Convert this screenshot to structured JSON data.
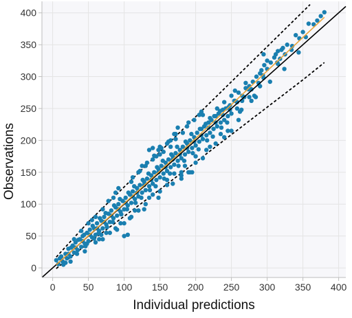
{
  "chart_data": {
    "type": "scatter",
    "xlabel": "Individual predictions",
    "ylabel": "Observations",
    "xlim": [
      -15,
      410
    ],
    "ylim": [
      -15,
      418
    ],
    "xticks": [
      0,
      50,
      100,
      150,
      200,
      250,
      300,
      350,
      400
    ],
    "yticks": [
      0,
      50,
      100,
      150,
      200,
      250,
      300,
      350,
      400
    ],
    "grid": true,
    "colors": {
      "points": "#1a7fb0",
      "identity": "#000000",
      "smooth": "#e8a33a",
      "bounds": "#000000",
      "grid": "#e4e4e4",
      "plot_background": "#f7f7fa"
    },
    "lines": {
      "identity": [
        [
          -15,
          -15
        ],
        [
          410,
          410
        ]
      ],
      "smooth": [
        [
          5,
          5
        ],
        [
          100,
          101
        ],
        [
          200,
          203
        ],
        [
          300,
          309
        ],
        [
          380,
          393
        ]
      ],
      "upper_bound": [
        [
          5,
          17
        ],
        [
          50,
          72
        ],
        [
          100,
          127
        ],
        [
          150,
          182
        ],
        [
          200,
          237
        ],
        [
          250,
          292
        ],
        [
          300,
          347
        ],
        [
          350,
          402
        ],
        [
          360,
          413
        ]
      ],
      "lower_bound": [
        [
          5,
          -1
        ],
        [
          50,
          39
        ],
        [
          100,
          81
        ],
        [
          150,
          123
        ],
        [
          200,
          166
        ],
        [
          250,
          209
        ],
        [
          300,
          252
        ],
        [
          350,
          295
        ],
        [
          380,
          322
        ]
      ]
    },
    "points_note": "dense cloud of ~2000 observations along the identity line, spread widening with prediction",
    "points": [
      [
        5,
        12
      ],
      [
        8,
        6
      ],
      [
        12,
        18
      ],
      [
        14,
        10
      ],
      [
        18,
        22
      ],
      [
        20,
        15
      ],
      [
        22,
        30
      ],
      [
        25,
        18
      ],
      [
        28,
        35
      ],
      [
        30,
        24
      ],
      [
        32,
        40
      ],
      [
        35,
        28
      ],
      [
        38,
        45
      ],
      [
        40,
        33
      ],
      [
        42,
        50
      ],
      [
        45,
        38
      ],
      [
        48,
        55
      ],
      [
        50,
        42
      ],
      [
        52,
        60
      ],
      [
        55,
        48
      ],
      [
        58,
        62
      ],
      [
        60,
        52
      ],
      [
        62,
        70
      ],
      [
        65,
        58
      ],
      [
        68,
        74
      ],
      [
        70,
        62
      ],
      [
        72,
        80
      ],
      [
        75,
        68
      ],
      [
        78,
        85
      ],
      [
        80,
        72
      ],
      [
        82,
        90
      ],
      [
        85,
        78
      ],
      [
        88,
        95
      ],
      [
        90,
        82
      ],
      [
        92,
        100
      ],
      [
        95,
        88
      ],
      [
        98,
        105
      ],
      [
        100,
        92
      ],
      [
        102,
        110
      ],
      [
        105,
        98
      ],
      [
        108,
        115
      ],
      [
        110,
        102
      ],
      [
        112,
        120
      ],
      [
        115,
        108
      ],
      [
        118,
        125
      ],
      [
        120,
        112
      ],
      [
        122,
        130
      ],
      [
        125,
        118
      ],
      [
        128,
        135
      ],
      [
        130,
        122
      ],
      [
        132,
        140
      ],
      [
        135,
        128
      ],
      [
        138,
        145
      ],
      [
        140,
        132
      ],
      [
        142,
        150
      ],
      [
        145,
        138
      ],
      [
        148,
        155
      ],
      [
        150,
        142
      ],
      [
        152,
        160
      ],
      [
        155,
        148
      ],
      [
        158,
        165
      ],
      [
        160,
        152
      ],
      [
        162,
        170
      ],
      [
        165,
        158
      ],
      [
        168,
        175
      ],
      [
        170,
        162
      ],
      [
        172,
        180
      ],
      [
        175,
        168
      ],
      [
        178,
        185
      ],
      [
        180,
        172
      ],
      [
        182,
        190
      ],
      [
        185,
        178
      ],
      [
        188,
        195
      ],
      [
        190,
        182
      ],
      [
        192,
        200
      ],
      [
        195,
        188
      ],
      [
        198,
        205
      ],
      [
        200,
        192
      ],
      [
        202,
        212
      ],
      [
        205,
        198
      ],
      [
        208,
        218
      ],
      [
        210,
        202
      ],
      [
        212,
        222
      ],
      [
        215,
        208
      ],
      [
        218,
        228
      ],
      [
        220,
        212
      ],
      [
        222,
        232
      ],
      [
        225,
        218
      ],
      [
        228,
        238
      ],
      [
        230,
        222
      ],
      [
        232,
        242
      ],
      [
        235,
        228
      ],
      [
        238,
        248
      ],
      [
        240,
        232
      ],
      [
        242,
        250
      ],
      [
        245,
        238
      ],
      [
        248,
        255
      ],
      [
        250,
        242
      ],
      [
        255,
        262
      ],
      [
        258,
        250
      ],
      [
        65,
        45
      ],
      [
        75,
        55
      ],
      [
        85,
        110
      ],
      [
        95,
        70
      ],
      [
        110,
        135
      ],
      [
        115,
        90
      ],
      [
        130,
        160
      ],
      [
        135,
        110
      ],
      [
        148,
        185
      ],
      [
        160,
        130
      ],
      [
        172,
        210
      ],
      [
        180,
        145
      ],
      [
        190,
        228
      ],
      [
        200,
        175
      ],
      [
        205,
        240
      ],
      [
        215,
        185
      ],
      [
        220,
        235
      ],
      [
        228,
        195
      ],
      [
        240,
        260
      ],
      [
        245,
        215
      ],
      [
        100,
        50
      ],
      [
        105,
        52
      ],
      [
        45,
        26
      ],
      [
        25,
        10
      ],
      [
        60,
        80
      ],
      [
        185,
        160
      ],
      [
        190,
        150
      ],
      [
        195,
        150
      ],
      [
        180,
        150
      ],
      [
        135,
        185
      ],
      [
        140,
        188
      ],
      [
        150,
        190
      ],
      [
        160,
        195
      ],
      [
        165,
        200
      ],
      [
        170,
        210
      ],
      [
        175,
        220
      ],
      [
        210,
        240
      ],
      [
        230,
        250
      ],
      [
        250,
        270
      ],
      [
        255,
        278
      ],
      [
        260,
        275
      ],
      [
        265,
        270
      ],
      [
        270,
        282
      ],
      [
        275,
        285
      ],
      [
        280,
        292
      ],
      [
        285,
        300
      ],
      [
        290,
        305
      ],
      [
        292,
        310
      ],
      [
        295,
        298
      ],
      [
        300,
        312
      ],
      [
        270,
        290
      ],
      [
        265,
        262
      ],
      [
        275,
        268
      ],
      [
        288,
        290
      ],
      [
        296,
        318
      ],
      [
        305,
        322
      ],
      [
        310,
        330
      ],
      [
        300,
        325
      ],
      [
        295,
        335
      ],
      [
        315,
        340
      ],
      [
        320,
        342
      ],
      [
        312,
        335
      ],
      [
        322,
        345
      ],
      [
        328,
        350
      ],
      [
        340,
        365
      ],
      [
        335,
        348
      ],
      [
        345,
        360
      ],
      [
        350,
        370
      ],
      [
        358,
        383
      ],
      [
        365,
        382
      ],
      [
        370,
        388
      ],
      [
        375,
        395
      ],
      [
        380,
        401
      ],
      [
        315,
        320
      ],
      [
        318,
        328
      ],
      [
        325,
        335
      ],
      [
        262,
        245
      ],
      [
        278,
        262
      ],
      [
        282,
        270
      ],
      [
        290,
        285
      ],
      [
        50,
        70
      ],
      [
        55,
        75
      ],
      [
        70,
        92
      ],
      [
        78,
        105
      ],
      [
        88,
        118
      ],
      [
        92,
        125
      ],
      [
        120,
        150
      ],
      [
        125,
        160
      ],
      [
        140,
        170
      ],
      [
        150,
        178
      ],
      [
        60,
        40
      ],
      [
        70,
        45
      ],
      [
        80,
        55
      ],
      [
        90,
        60
      ],
      [
        100,
        70
      ],
      [
        110,
        80
      ],
      [
        120,
        90
      ],
      [
        130,
        100
      ],
      [
        140,
        115
      ],
      [
        150,
        120
      ],
      [
        160,
        138
      ],
      [
        170,
        148
      ],
      [
        180,
        140
      ],
      [
        200,
        165
      ],
      [
        210,
        172
      ],
      [
        220,
        190
      ],
      [
        235,
        210
      ],
      [
        240,
        205
      ],
      [
        250,
        215
      ],
      [
        260,
        232
      ],
      [
        15,
        5
      ],
      [
        10,
        15
      ],
      [
        18,
        8
      ],
      [
        26,
        32
      ],
      [
        34,
        22
      ],
      [
        44,
        52
      ],
      [
        48,
        38
      ],
      [
        56,
        66
      ],
      [
        64,
        54
      ],
      [
        74,
        86
      ],
      [
        84,
        72
      ],
      [
        94,
        108
      ],
      [
        104,
        92
      ],
      [
        114,
        128
      ],
      [
        124,
        110
      ],
      [
        134,
        148
      ],
      [
        144,
        128
      ],
      [
        154,
        168
      ],
      [
        164,
        148
      ],
      [
        174,
        190
      ],
      [
        184,
        168
      ],
      [
        194,
        210
      ],
      [
        204,
        186
      ],
      [
        214,
        226
      ],
      [
        224,
        206
      ],
      [
        234,
        246
      ],
      [
        244,
        228
      ],
      [
        254,
        262
      ],
      [
        264,
        248
      ],
      [
        274,
        280
      ],
      [
        284,
        268
      ],
      [
        294,
        302
      ],
      [
        304,
        292
      ],
      [
        314,
        322
      ],
      [
        324,
        312
      ],
      [
        334,
        342
      ],
      [
        344,
        338
      ],
      [
        354,
        362
      ],
      [
        36,
        44
      ],
      [
        46,
        34
      ],
      [
        58,
        46
      ],
      [
        66,
        78
      ],
      [
        76,
        64
      ],
      [
        86,
        98
      ],
      [
        96,
        84
      ],
      [
        106,
        118
      ],
      [
        116,
        102
      ],
      [
        126,
        138
      ],
      [
        136,
        122
      ],
      [
        146,
        158
      ],
      [
        156,
        140
      ],
      [
        166,
        178
      ],
      [
        176,
        160
      ],
      [
        186,
        198
      ],
      [
        196,
        180
      ],
      [
        206,
        218
      ],
      [
        216,
        200
      ],
      [
        226,
        238
      ],
      [
        236,
        220
      ],
      [
        246,
        252
      ],
      [
        192,
        150
      ],
      [
        168,
        132
      ],
      [
        148,
        110
      ],
      [
        128,
        92
      ],
      [
        108,
        78
      ],
      [
        88,
        62
      ],
      [
        68,
        52
      ],
      [
        30,
        45
      ],
      [
        40,
        58
      ],
      [
        112,
        142
      ],
      [
        122,
        152
      ],
      [
        132,
        165
      ],
      [
        142,
        176
      ],
      [
        152,
        188
      ],
      [
        162,
        198
      ],
      [
        172,
        202
      ],
      [
        182,
        212
      ],
      [
        188,
        222
      ],
      [
        198,
        232
      ],
      [
        208,
        245
      ],
      [
        118,
        118
      ],
      [
        128,
        130
      ],
      [
        138,
        138
      ],
      [
        148,
        150
      ],
      [
        158,
        158
      ],
      [
        168,
        170
      ],
      [
        178,
        178
      ],
      [
        188,
        188
      ],
      [
        198,
        198
      ],
      [
        208,
        208
      ],
      [
        218,
        220
      ],
      [
        228,
        228
      ],
      [
        238,
        240
      ],
      [
        248,
        248
      ],
      [
        258,
        260
      ],
      [
        268,
        268
      ],
      [
        278,
        280
      ],
      [
        22,
        22
      ],
      [
        32,
        32
      ],
      [
        42,
        42
      ],
      [
        52,
        52
      ],
      [
        62,
        62
      ],
      [
        72,
        72
      ],
      [
        82,
        82
      ],
      [
        92,
        92
      ],
      [
        102,
        102
      ],
      [
        112,
        112
      ],
      [
        145,
        175
      ],
      [
        155,
        182
      ],
      [
        165,
        190
      ]
    ]
  }
}
